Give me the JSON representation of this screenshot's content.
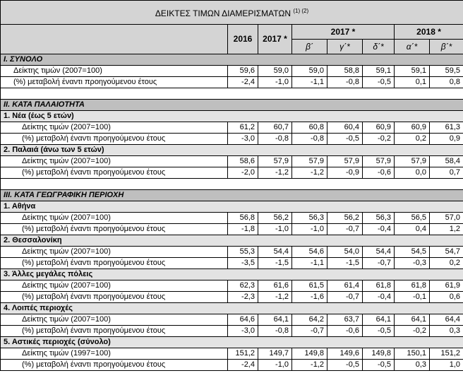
{
  "title": {
    "text": "ΔΕΙΚΤΕΣ ΤΙΜΩΝ ΔΙΑΜΕΡΙΣΜΑΤΩΝ",
    "note": "(1) (2)"
  },
  "header": {
    "years": [
      "2016",
      "2017 *",
      "2017 *",
      "2018 *"
    ],
    "quarters": [
      "β΄",
      "γ΄*",
      "δ΄*",
      "α΄*",
      "β΄*"
    ]
  },
  "sections": [
    {
      "label": "I. ΣΥΝΟΛΟ",
      "rows": [
        {
          "label": "Δείκτης τιμών (2007=100)",
          "values": [
            "59,6",
            "59,0",
            "59,0",
            "58,8",
            "59,1",
            "59,1",
            "59,5"
          ]
        },
        {
          "label": "(%) μεταβολή έναντι προηγούμενου έτους",
          "values": [
            "-2,4",
            "-1,0",
            "-1,1",
            "-0,8",
            "-0,5",
            "0,1",
            "0,8"
          ]
        }
      ]
    },
    {
      "label": "II. ΚΑΤΑ ΠΑΛΑΙΟΤΗΤΑ",
      "groups": [
        {
          "label": "1. Νέα (έως 5 ετών)",
          "rows": [
            {
              "label": "Δείκτης τιμών (2007=100)",
              "values": [
                "61,2",
                "60,7",
                "60,8",
                "60,4",
                "60,9",
                "60,9",
                "61,3"
              ]
            },
            {
              "label": "(%) μεταβολή έναντι προηγούμενου έτους",
              "values": [
                "-3,0",
                "-0,8",
                "-0,8",
                "-0,5",
                "-0,2",
                "0,2",
                "0,9"
              ]
            }
          ]
        },
        {
          "label": "2. Παλαιά (άνω των 5 ετών)",
          "rows": [
            {
              "label": "Δείκτης τιμών (2007=100)",
              "values": [
                "58,6",
                "57,9",
                "57,9",
                "57,9",
                "57,9",
                "57,9",
                "58,4"
              ]
            },
            {
              "label": "(%) μεταβολή έναντι προηγούμενου έτους",
              "values": [
                "-2,0",
                "-1,2",
                "-1,2",
                "-0,9",
                "-0,6",
                "0,0",
                "0,7"
              ]
            }
          ]
        }
      ]
    },
    {
      "label": "III. ΚΑΤΑ ΓΕΩΓΡΑΦΙΚΗ ΠΕΡΙΟΧΗ",
      "groups": [
        {
          "label": "1. Αθήνα",
          "rows": [
            {
              "label": "Δείκτης τιμών (2007=100)",
              "values": [
                "56,8",
                "56,2",
                "56,3",
                "56,2",
                "56,3",
                "56,5",
                "57,0"
              ]
            },
            {
              "label": "(%) μεταβολή έναντι προηγούμενου έτους",
              "values": [
                "-1,8",
                "-1,0",
                "-1,0",
                "-0,7",
                "-0,4",
                "0,4",
                "1,2"
              ]
            }
          ]
        },
        {
          "label": "2. Θεσσαλονίκη",
          "rows": [
            {
              "label": "Δείκτης τιμών (2007=100)",
              "values": [
                "55,3",
                "54,4",
                "54,6",
                "54,0",
                "54,4",
                "54,5",
                "54,7"
              ]
            },
            {
              "label": "(%) μεταβολή έναντι προηγούμενου έτους",
              "values": [
                "-3,5",
                "-1,5",
                "-1,1",
                "-1,5",
                "-0,7",
                "-0,3",
                "0,2"
              ]
            }
          ]
        },
        {
          "label": "3. Άλλες μεγάλες πόλεις",
          "rows": [
            {
              "label": "Δείκτης τιμών (2007=100)",
              "values": [
                "62,3",
                "61,6",
                "61,5",
                "61,4",
                "61,8",
                "61,8",
                "61,9"
              ]
            },
            {
              "label": "(%) μεταβολή έναντι προηγούμενου έτους",
              "values": [
                "-2,3",
                "-1,2",
                "-1,6",
                "-0,7",
                "-0,4",
                "-0,1",
                "0,6"
              ]
            }
          ]
        },
        {
          "label": "4. Λοιπές περιοχές",
          "rows": [
            {
              "label": "Δείκτης τιμών (2007=100)",
              "values": [
                "64,6",
                "64,1",
                "64,2",
                "63,7",
                "64,1",
                "64,1",
                "64,4"
              ]
            },
            {
              "label": "(%) μεταβολή έναντι προηγούμενου έτους",
              "values": [
                "-3,0",
                "-0,8",
                "-0,7",
                "-0,6",
                "-0,5",
                "-0,2",
                "0,3"
              ]
            }
          ]
        },
        {
          "label": "5. Αστικές περιοχές (σύνολο)",
          "rows": [
            {
              "label": "Δείκτης τιμών (1997=100)",
              "values": [
                "151,2",
                "149,7",
                "149,8",
                "149,6",
                "149,8",
                "150,1",
                "151,2"
              ]
            },
            {
              "label": "(%) μεταβολή έναντι προηγούμενου έτους",
              "values": [
                "-2,4",
                "-1,0",
                "-1,2",
                "-0,5",
                "-0,5",
                "0,3",
                "1,0"
              ]
            }
          ]
        }
      ]
    }
  ]
}
